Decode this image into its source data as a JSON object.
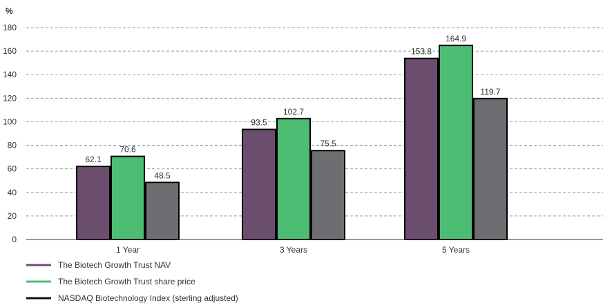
{
  "chart_data": {
    "type": "bar",
    "title": "",
    "ylabel": "%",
    "xlabel": "",
    "ylim": [
      0,
      180
    ],
    "yticks": [
      0,
      20,
      40,
      60,
      80,
      100,
      120,
      140,
      160,
      180
    ],
    "grid": true,
    "legend_position": "bottom-left",
    "categories": [
      "1 Year",
      "3 Years",
      "5 Years"
    ],
    "series": [
      {
        "name": "The Biotech Growth Trust NAV",
        "color": "#6b4e6e",
        "values": [
          62.1,
          93.5,
          153.8
        ]
      },
      {
        "name": "The Biotech Growth Trust share price",
        "color": "#4dbd74",
        "values": [
          70.6,
          102.7,
          164.9
        ]
      },
      {
        "name": "NASDAQ Biotechnology Index (sterling adjusted)",
        "color": "#6d6e71",
        "values": [
          48.5,
          75.5,
          119.7
        ]
      }
    ]
  }
}
